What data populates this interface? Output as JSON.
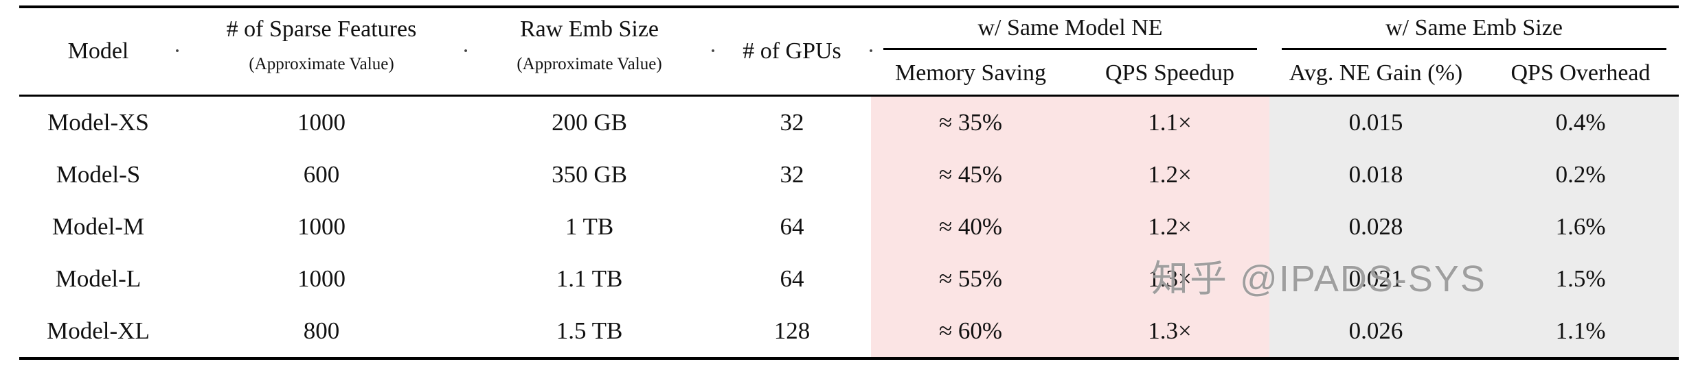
{
  "decor": {
    "dot": "·"
  },
  "watermark": {
    "text": "知乎 @IPADS-SYS"
  },
  "colors": {
    "same_model_ne_bg": "#fbe4e4",
    "same_emb_size_bg": "#ececec",
    "rule": "#000000"
  },
  "table": {
    "groups": [
      {
        "label": "w/ Same Model NE"
      },
      {
        "label": "w/ Same Emb Size"
      }
    ],
    "columns": [
      {
        "label": "Model",
        "sub": ""
      },
      {
        "label": "# of Sparse Features",
        "sub": "(Approximate Value)"
      },
      {
        "label": "Raw Emb Size",
        "sub": "(Approximate Value)"
      },
      {
        "label": "# of GPUs",
        "sub": ""
      },
      {
        "label": "Memory Saving",
        "group": "w/ Same Model NE"
      },
      {
        "label": "QPS Speedup",
        "group": "w/ Same Model NE"
      },
      {
        "label": "Avg. NE Gain (%)",
        "group": "w/ Same Emb Size"
      },
      {
        "label": "QPS Overhead",
        "group": "w/ Same Emb Size"
      }
    ],
    "rows": [
      [
        "Model-XS",
        "1000",
        "200 GB",
        "32",
        "≈ 35%",
        "1.1×",
        "0.015",
        "0.4%"
      ],
      [
        "Model-S",
        "600",
        "350 GB",
        "32",
        "≈ 45%",
        "1.2×",
        "0.018",
        "0.2%"
      ],
      [
        "Model-M",
        "1000",
        "1 TB",
        "64",
        "≈ 40%",
        "1.2×",
        "0.028",
        "1.6%"
      ],
      [
        "Model-L",
        "1000",
        "1.1 TB",
        "64",
        "≈ 55%",
        "1.3×",
        "0.021",
        "1.5%"
      ],
      [
        "Model-XL",
        "800",
        "1.5 TB",
        "128",
        "≈ 60%",
        "1.3×",
        "0.026",
        "1.1%"
      ]
    ]
  }
}
